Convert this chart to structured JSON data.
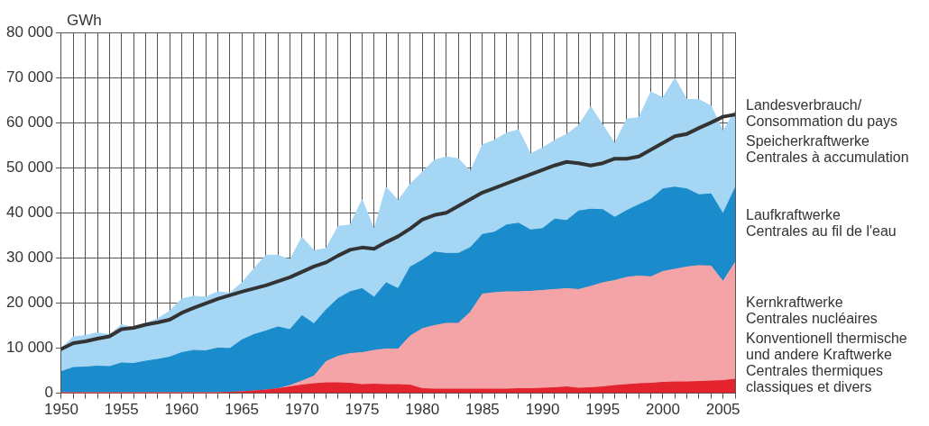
{
  "chart_data": {
    "type": "area",
    "ylabel": "GWh",
    "stacked": true,
    "grid": true,
    "legend": "right",
    "marker": "none",
    "x": [
      1950,
      1951,
      1952,
      1953,
      1954,
      1955,
      1956,
      1957,
      1958,
      1959,
      1960,
      1961,
      1962,
      1963,
      1964,
      1965,
      1966,
      1967,
      1968,
      1969,
      1970,
      1971,
      1972,
      1973,
      1974,
      1975,
      1976,
      1977,
      1978,
      1979,
      1980,
      1981,
      1982,
      1983,
      1984,
      1985,
      1986,
      1987,
      1988,
      1989,
      1990,
      1991,
      1992,
      1993,
      1994,
      1995,
      1996,
      1997,
      1998,
      1999,
      2000,
      2001,
      2002,
      2003,
      2004,
      2005,
      2006
    ],
    "xlim": [
      1950,
      2006
    ],
    "xticks": [
      1950,
      {
        "value": 1951,
        "label": null
      },
      {
        "value": 1952,
        "label": null
      },
      {
        "value": 1953,
        "label": null
      },
      {
        "value": 1954,
        "label": null
      },
      1955,
      {
        "value": 1956,
        "label": null
      },
      {
        "value": 1957,
        "label": null
      },
      {
        "value": 1958,
        "label": null
      },
      {
        "value": 1959,
        "label": null
      },
      1960,
      {
        "value": 1961,
        "label": null
      },
      {
        "value": 1962,
        "label": null
      },
      {
        "value": 1963,
        "label": null
      },
      {
        "value": 1964,
        "label": null
      },
      1965,
      {
        "value": 1966,
        "label": null
      },
      {
        "value": 1967,
        "label": null
      },
      {
        "value": 1968,
        "label": null
      },
      {
        "value": 1969,
        "label": null
      },
      1970,
      {
        "value": 1971,
        "label": null
      },
      {
        "value": 1972,
        "label": null
      },
      {
        "value": 1973,
        "label": null
      },
      {
        "value": 1974,
        "label": null
      },
      1975,
      {
        "value": 1976,
        "label": null
      },
      {
        "value": 1977,
        "label": null
      },
      {
        "value": 1978,
        "label": null
      },
      {
        "value": 1979,
        "label": null
      },
      1980,
      {
        "value": 1981,
        "label": null
      },
      {
        "value": 1982,
        "label": null
      },
      {
        "value": 1983,
        "label": null
      },
      {
        "value": 1984,
        "label": null
      },
      1985,
      {
        "value": 1986,
        "label": null
      },
      {
        "value": 1987,
        "label": null
      },
      {
        "value": 1988,
        "label": null
      },
      {
        "value": 1989,
        "label": null
      },
      1990,
      {
        "value": 1991,
        "label": null
      },
      {
        "value": 1992,
        "label": null
      },
      {
        "value": 1993,
        "label": null
      },
      {
        "value": 1994,
        "label": null
      },
      1995,
      {
        "value": 1996,
        "label": null
      },
      {
        "value": 1997,
        "label": null
      },
      {
        "value": 1998,
        "label": null
      },
      {
        "value": 1999,
        "label": null
      },
      2000,
      {
        "value": 2001,
        "label": null
      },
      {
        "value": 2002,
        "label": null
      },
      {
        "value": 2003,
        "label": null
      },
      {
        "value": 2004,
        "label": null
      },
      2005,
      {
        "value": 2006,
        "label": null
      }
    ],
    "ylim": [
      0,
      80000
    ],
    "yticks": [
      0,
      {
        "value": 10000,
        "label": "10 000"
      },
      {
        "value": 20000,
        "label": "20 000"
      },
      {
        "value": 30000,
        "label": "30 000"
      },
      {
        "value": 40000,
        "label": "40 000"
      },
      {
        "value": 50000,
        "label": "50 000"
      },
      {
        "value": 60000,
        "label": "60 000"
      },
      {
        "value": 70000,
        "label": "70 000"
      },
      {
        "value": 80000,
        "label": "80 000"
      }
    ],
    "series": [
      {
        "name": "Konventionell thermische\nund andere Kraftwerke\nCentrales thermiques\nclassiques et divers",
        "color": "#e3242e",
        "values": [
          100,
          100,
          100,
          100,
          100,
          100,
          100,
          100,
          100,
          100,
          100,
          100,
          100,
          100,
          200,
          300,
          500,
          700,
          1000,
          1400,
          1800,
          2100,
          2300,
          2300,
          2200,
          1900,
          2000,
          1900,
          1900,
          1800,
          1000,
          900,
          900,
          900,
          900,
          900,
          900,
          900,
          1000,
          1000,
          1100,
          1200,
          1400,
          1100,
          1200,
          1400,
          1700,
          1900,
          2100,
          2200,
          2400,
          2500,
          2500,
          2600,
          2700,
          2800,
          3100
        ]
      },
      {
        "name": "Kernkraftwerke\nCentrales nucléaires",
        "color": "#f4a3a6",
        "values": [
          0,
          0,
          0,
          0,
          0,
          0,
          0,
          0,
          0,
          0,
          0,
          0,
          0,
          0,
          0,
          0,
          0,
          0,
          0,
          300,
          900,
          1700,
          4700,
          5900,
          6600,
          7100,
          7500,
          7900,
          7900,
          10900,
          13300,
          14100,
          14600,
          14600,
          17100,
          21100,
          21400,
          21600,
          21500,
          21600,
          21700,
          21800,
          21800,
          21900,
          22500,
          23100,
          23300,
          23800,
          23900,
          23600,
          24600,
          25000,
          25500,
          25700,
          25500,
          22000,
          25900
        ]
      },
      {
        "name": "Laufkraftwerke\nCentrales au fil de l'eau",
        "color": "#1a8ccc",
        "values": [
          4700,
          5600,
          5700,
          5900,
          5800,
          6600,
          6500,
          7000,
          7400,
          7900,
          8900,
          9400,
          9300,
          9900,
          9700,
          11500,
          12500,
          13100,
          13700,
          12400,
          14500,
          11600,
          11500,
          12800,
          13700,
          14200,
          11800,
          14700,
          13400,
          15300,
          15200,
          16300,
          15500,
          15500,
          14300,
          13200,
          13400,
          14800,
          15200,
          13600,
          13700,
          15600,
          15100,
          17400,
          17100,
          16200,
          14000,
          14800,
          15800,
          17200,
          18300,
          18200,
          17300,
          15700,
          16000,
          15000,
          16500
        ]
      },
      {
        "name": "Speicherkraftwerke\nCentrales à accumulation",
        "color": "#a5d6f4",
        "values": [
          5200,
          6800,
          7000,
          7400,
          7100,
          8500,
          7900,
          8400,
          9000,
          10200,
          11900,
          12000,
          11900,
          12500,
          12300,
          12700,
          14600,
          16800,
          15900,
          15500,
          17400,
          16200,
          13600,
          16000,
          14800,
          19700,
          15000,
          21200,
          19500,
          18400,
          19500,
          20400,
          21400,
          21000,
          16900,
          19900,
          20400,
          20400,
          20700,
          16900,
          17900,
          17500,
          19100,
          19000,
          22700,
          18800,
          16400,
          20300,
          19300,
          23800,
          20200,
          24100,
          19800,
          21100,
          19500,
          18300,
          17100
        ]
      },
      {
        "name": "Landesverbrauch/\nConsommation du pays",
        "type": "line",
        "color": "#333333",
        "values": [
          9800,
          11100,
          11500,
          12100,
          12600,
          14200,
          14500,
          15200,
          15700,
          16300,
          17800,
          18900,
          19900,
          20900,
          21700,
          22500,
          23200,
          23900,
          24800,
          25700,
          26900,
          28100,
          29000,
          30500,
          31800,
          32300,
          32000,
          33500,
          34800,
          36500,
          38500,
          39500,
          40000,
          41500,
          43000,
          44500,
          45500,
          46500,
          47500,
          48500,
          49500,
          50500,
          51300,
          51000,
          50500,
          51000,
          52000,
          52000,
          52500,
          54000,
          55500,
          57000,
          57500,
          58800,
          60000,
          61300,
          61800
        ]
      }
    ]
  }
}
